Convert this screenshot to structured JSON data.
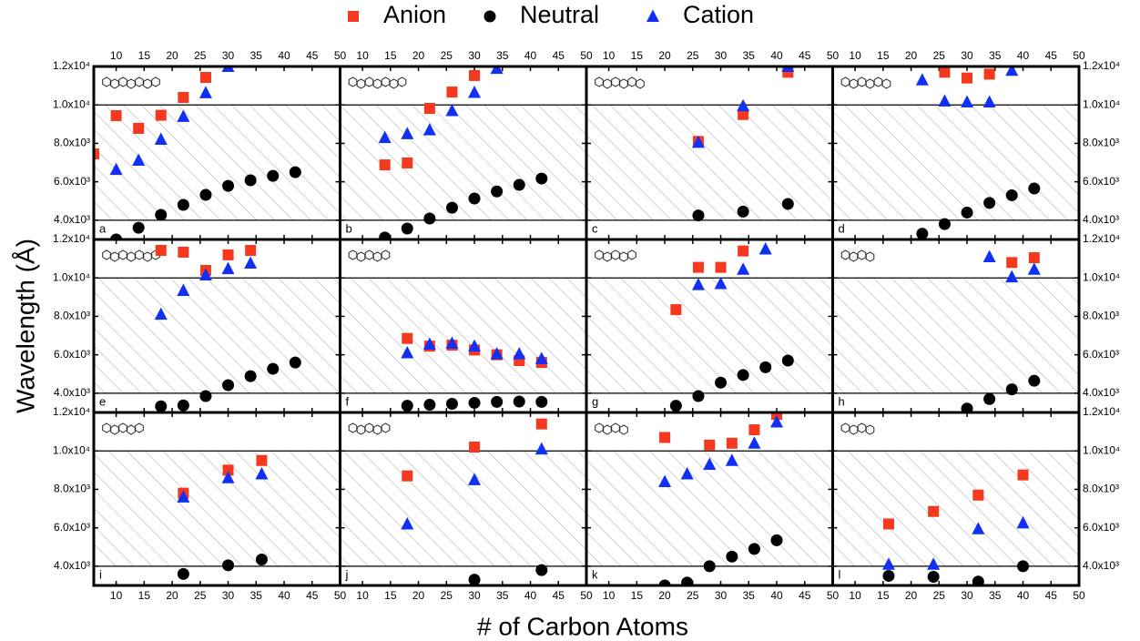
{
  "chart_data": {
    "type": "scatter",
    "x_label": "# of Carbon Atoms",
    "y_label": "Wavelength (Å)",
    "xlim": [
      6,
      50
    ],
    "ylim": [
      3000,
      12000
    ],
    "xticks": [
      10,
      15,
      20,
      25,
      30,
      35,
      40,
      45,
      50
    ],
    "yticks": [
      {
        "value": 4000,
        "label": "4.0x10³"
      },
      {
        "value": 6000,
        "label": "6.0x10³"
      },
      {
        "value": 8000,
        "label": "8.0x10³"
      },
      {
        "value": 10000,
        "label": "1.0x10⁴"
      },
      {
        "value": 12000,
        "label": "1.2x10⁴"
      }
    ],
    "shaded_range": [
      4000,
      10000
    ],
    "series": [
      {
        "name": "Anion",
        "color": "#f5381e",
        "marker": "square"
      },
      {
        "name": "Neutral",
        "color": "#000000",
        "marker": "circle"
      },
      {
        "name": "Cation",
        "color": "#1030f5",
        "marker": "triangle"
      }
    ],
    "panels": [
      {
        "label": "a",
        "series": [
          {
            "x": [
              6,
              10,
              14,
              18,
              22,
              26
            ],
            "values": [
              7450,
              9440,
              8780,
              9460,
              10390,
              11430
            ]
          },
          {
            "x": [
              10,
              14,
              18,
              22,
              26,
              30,
              34,
              38,
              42
            ],
            "values": [
              3000,
              3610,
              4280,
              4800,
              5320,
              5790,
              6080,
              6310,
              6500
            ]
          },
          {
            "x": [
              10,
              14,
              18,
              22,
              26,
              30
            ],
            "values": [
              6640,
              7120,
              8210,
              9400,
              10630,
              12000
            ]
          }
        ]
      },
      {
        "label": "b",
        "series": [
          {
            "x": [
              14,
              18,
              22,
              26,
              30
            ],
            "values": [
              6880,
              6980,
              9820,
              10670,
              11530
            ]
          },
          {
            "x": [
              14,
              18,
              22,
              26,
              30,
              34,
              38,
              42
            ],
            "values": [
              3100,
              3570,
              4090,
              4650,
              5130,
              5500,
              5840,
              6170
            ]
          },
          {
            "x": [
              14,
              18,
              22,
              26,
              30,
              34
            ],
            "values": [
              8300,
              8500,
              8700,
              9700,
              10650,
              11900
            ]
          }
        ]
      },
      {
        "label": "c",
        "series": [
          {
            "x": [
              26,
              34,
              42
            ],
            "values": [
              8100,
              9500,
              11700
            ]
          },
          {
            "x": [
              26,
              34,
              42
            ],
            "values": [
              4250,
              4450,
              4850
            ]
          },
          {
            "x": [
              26,
              34,
              42
            ],
            "values": [
              8050,
              9950,
              12000
            ]
          }
        ]
      },
      {
        "label": "d",
        "series": [
          {
            "x": [
              26,
              30,
              34
            ],
            "values": [
              11700,
              11400,
              11600
            ]
          },
          {
            "x": [
              22,
              26,
              30,
              34,
              38,
              42
            ],
            "values": [
              3300,
              3800,
              4400,
              4900,
              5300,
              5650
            ]
          },
          {
            "x": [
              22,
              26,
              30,
              34,
              38
            ],
            "values": [
              11300,
              10200,
              10150,
              10150,
              11800
            ]
          }
        ]
      },
      {
        "label": "e",
        "series": [
          {
            "x": [
              18,
              22,
              26,
              30,
              34
            ],
            "values": [
              11430,
              11340,
              10390,
              11200,
              11430
            ]
          },
          {
            "x": [
              18,
              22,
              26,
              30,
              34,
              38,
              42
            ],
            "values": [
              3320,
              3370,
              3850,
              4420,
              4890,
              5270,
              5600
            ]
          },
          {
            "x": [
              18,
              22,
              26,
              30,
              34
            ],
            "values": [
              8110,
              9350,
              10150,
              10480,
              10770
            ]
          }
        ]
      },
      {
        "label": "f",
        "series": [
          {
            "x": [
              18,
              22,
              26,
              30,
              34,
              38,
              42
            ],
            "values": [
              6850,
              6450,
              6500,
              6250,
              6000,
              5700,
              5600
            ]
          },
          {
            "x": [
              18,
              22,
              26,
              30,
              34,
              38,
              42
            ],
            "values": [
              3350,
              3400,
              3450,
              3500,
              3550,
              3570,
              3550
            ]
          },
          {
            "x": [
              18,
              22,
              26,
              30,
              34,
              38,
              42
            ],
            "values": [
              6100,
              6550,
              6600,
              6450,
              6050,
              6050,
              5800
            ]
          }
        ]
      },
      {
        "label": "g",
        "series": [
          {
            "x": [
              22,
              26,
              30,
              34
            ],
            "values": [
              8350,
              10550,
              10550,
              11400
            ]
          },
          {
            "x": [
              22,
              26,
              30,
              34,
              38,
              42
            ],
            "values": [
              3350,
              3850,
              4550,
              4950,
              5350,
              5700
            ]
          },
          {
            "x": [
              26,
              30,
              34,
              38
            ],
            "values": [
              9650,
              9700,
              10450,
              11500
            ]
          }
        ]
      },
      {
        "label": "h",
        "series": [
          {
            "x": [
              38,
              42
            ],
            "values": [
              10800,
              11050
            ]
          },
          {
            "x": [
              30,
              34,
              38,
              42
            ],
            "values": [
              3200,
              3700,
              4200,
              4650
            ]
          },
          {
            "x": [
              34,
              38,
              42
            ],
            "values": [
              11100,
              10050,
              10450
            ]
          }
        ]
      },
      {
        "label": "i",
        "series": [
          {
            "x": [
              22,
              30,
              36
            ],
            "values": [
              7800,
              9000,
              9500
            ]
          },
          {
            "x": [
              22,
              30,
              36
            ],
            "values": [
              3600,
              4050,
              4350
            ]
          },
          {
            "x": [
              22,
              30,
              36
            ],
            "values": [
              7600,
              8600,
              8800
            ]
          }
        ]
      },
      {
        "label": "j",
        "series": [
          {
            "x": [
              18,
              30,
              42
            ],
            "values": [
              8700,
              10200,
              11400
            ]
          },
          {
            "x": [
              30,
              42
            ],
            "values": [
              3300,
              3800
            ]
          },
          {
            "x": [
              18,
              30,
              42
            ],
            "values": [
              6200,
              8500,
              10100
            ]
          }
        ]
      },
      {
        "label": "k",
        "series": [
          {
            "x": [
              20,
              28,
              32,
              36,
              40
            ],
            "values": [
              10700,
              10300,
              10400,
              11100,
              11900
            ]
          },
          {
            "x": [
              20,
              24,
              28,
              32,
              36,
              40
            ],
            "values": [
              3000,
              3150,
              4000,
              4500,
              4900,
              5350
            ]
          },
          {
            "x": [
              20,
              24,
              28,
              32,
              36,
              40
            ],
            "values": [
              8400,
              8800,
              9300,
              9500,
              10400,
              11500
            ]
          }
        ]
      },
      {
        "label": "l",
        "series": [
          {
            "x": [
              16,
              24,
              32,
              40
            ],
            "values": [
              6200,
              6850,
              7700,
              8750
            ]
          },
          {
            "x": [
              16,
              24,
              32,
              40
            ],
            "values": [
              3500,
              3450,
              3200,
              4000
            ]
          },
          {
            "x": [
              16,
              24,
              32,
              40
            ],
            "values": [
              4100,
              4100,
              5950,
              6250
            ]
          }
        ]
      }
    ]
  }
}
